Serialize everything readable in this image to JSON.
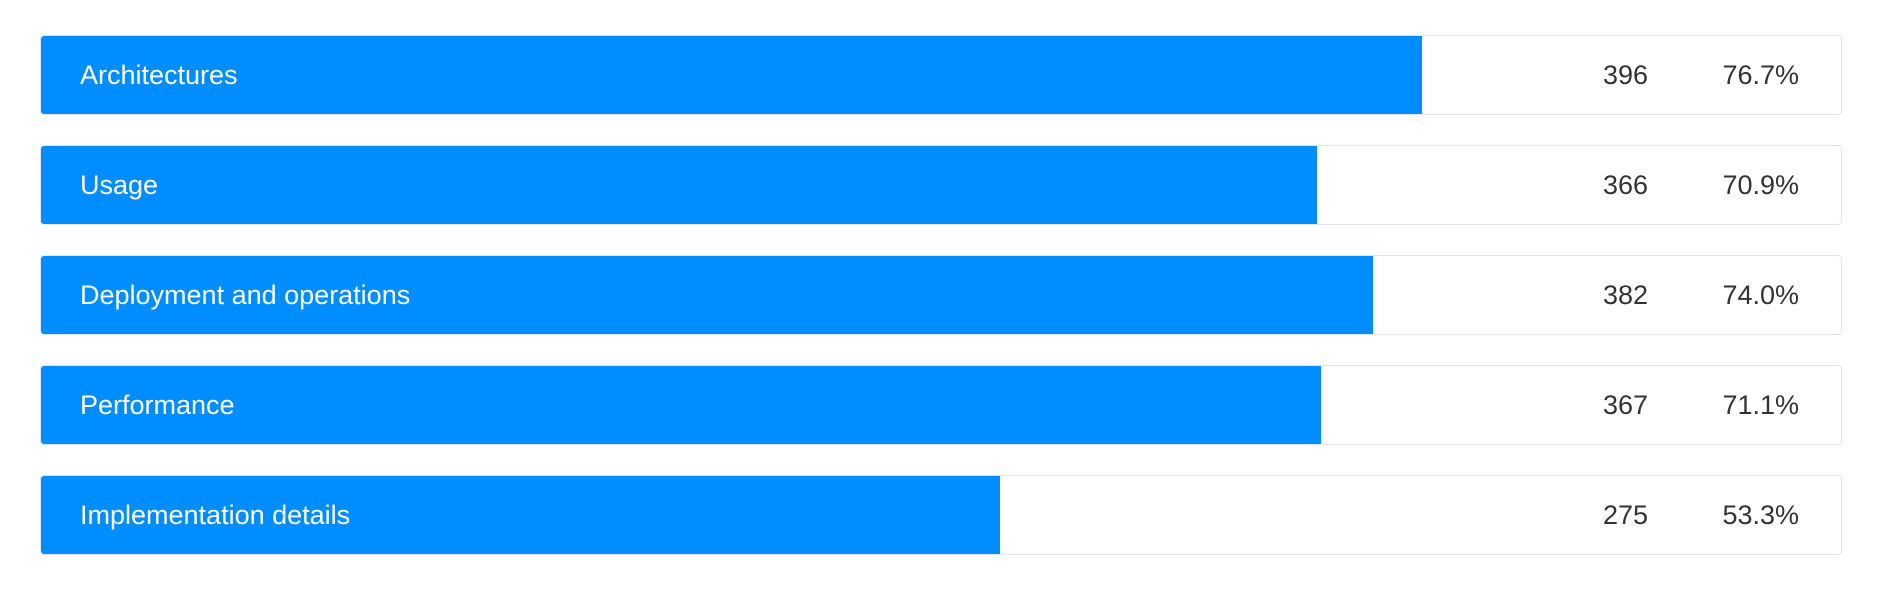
{
  "chart_data": {
    "type": "bar",
    "orientation": "horizontal",
    "categories": [
      "Architectures",
      "Usage",
      "Deployment and operations",
      "Performance",
      "Implementation details"
    ],
    "values": [
      396,
      366,
      382,
      367,
      275
    ],
    "percentages": [
      "76.7%",
      "70.9%",
      "74.0%",
      "71.1%",
      "53.3%"
    ],
    "fractions": [
      0.767,
      0.709,
      0.74,
      0.711,
      0.533
    ],
    "bar_color": "#008dff",
    "grid": false
  }
}
